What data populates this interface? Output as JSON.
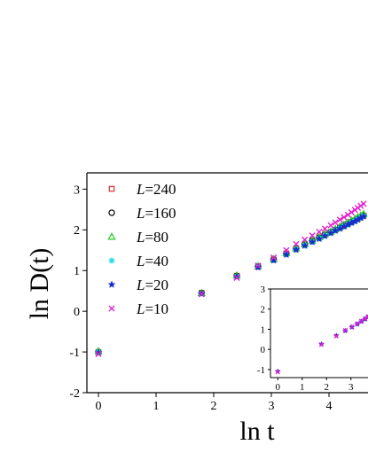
{
  "chart_data": [
    {
      "type": "scatter",
      "title": "",
      "xlabel": "ln t",
      "ylabel": "ln D(t)",
      "xlim": [
        -0.2,
        4.6
      ],
      "ylim": [
        -2,
        3.4
      ],
      "xticks": [
        0,
        1,
        2,
        3,
        4
      ],
      "yticks": [
        -2,
        -1,
        0,
        1,
        2,
        3
      ],
      "grid": false,
      "legend_position": "top-left",
      "series": [
        {
          "name": "L=240",
          "legend_prefix": "L",
          "legend_value": "=240",
          "marker": "square",
          "color": "#e03030",
          "x": [
            0,
            1.79,
            2.4,
            2.77,
            3.04,
            3.26,
            3.43,
            3.58,
            3.71,
            3.83,
            3.93,
            4.03,
            4.11,
            4.19,
            4.26,
            4.33,
            4.39,
            4.45,
            4.5,
            4.55,
            4.6
          ],
          "y": [
            -1.0,
            0.45,
            0.87,
            1.1,
            1.27,
            1.42,
            1.54,
            1.64,
            1.73,
            1.81,
            1.88,
            1.94,
            2.0,
            2.05,
            2.1,
            2.15,
            2.19,
            2.23,
            2.27,
            2.31,
            2.35
          ]
        },
        {
          "name": "L=160",
          "legend_prefix": "L",
          "legend_value": "=160",
          "marker": "circle",
          "color": "#000000",
          "x": [
            0,
            1.79,
            2.4,
            2.77,
            3.04,
            3.26,
            3.43,
            3.58,
            3.71,
            3.83,
            3.93,
            4.03,
            4.11,
            4.19,
            4.26,
            4.33,
            4.39,
            4.45,
            4.5,
            4.55,
            4.6
          ],
          "y": [
            -1.0,
            0.45,
            0.87,
            1.1,
            1.27,
            1.42,
            1.54,
            1.64,
            1.73,
            1.81,
            1.88,
            1.94,
            2.0,
            2.05,
            2.1,
            2.15,
            2.19,
            2.23,
            2.27,
            2.31,
            2.35
          ]
        },
        {
          "name": "L=80",
          "legend_prefix": "L",
          "legend_value": "=80",
          "marker": "triangle",
          "color": "#22cc22",
          "x": [
            0,
            1.79,
            2.4,
            2.77,
            3.04,
            3.26,
            3.43,
            3.58,
            3.71,
            3.83,
            3.93,
            4.03,
            4.11,
            4.19,
            4.26,
            4.33,
            4.39,
            4.45,
            4.5,
            4.55,
            4.6
          ],
          "y": [
            -0.98,
            0.45,
            0.88,
            1.11,
            1.28,
            1.43,
            1.55,
            1.65,
            1.74,
            1.82,
            1.9,
            1.96,
            2.02,
            2.08,
            2.13,
            2.18,
            2.23,
            2.27,
            2.31,
            2.35,
            2.39
          ]
        },
        {
          "name": "L=40",
          "legend_prefix": "L",
          "legend_value": "=40",
          "marker": "asterisk",
          "color": "#22dddd",
          "x": [
            0,
            1.79,
            2.4,
            2.77,
            3.04,
            3.26,
            3.43,
            3.58,
            3.71,
            3.83,
            3.93,
            4.03,
            4.11,
            4.19,
            4.26,
            4.33,
            4.39,
            4.45,
            4.5,
            4.55,
            4.6
          ],
          "y": [
            -1.0,
            0.44,
            0.86,
            1.09,
            1.26,
            1.4,
            1.52,
            1.62,
            1.71,
            1.79,
            1.86,
            1.93,
            1.99,
            2.04,
            2.09,
            2.14,
            2.18,
            2.22,
            2.26,
            2.3,
            2.34
          ]
        },
        {
          "name": "L=20",
          "legend_prefix": "L",
          "legend_value": "=20",
          "marker": "star",
          "color": "#1a2ccc",
          "x": [
            0,
            1.79,
            2.4,
            2.77,
            3.04,
            3.26,
            3.43,
            3.58,
            3.71,
            3.83,
            3.93,
            4.03,
            4.11,
            4.19,
            4.26,
            4.33,
            4.39,
            4.45,
            4.5,
            4.55,
            4.6
          ],
          "y": [
            -1.02,
            0.43,
            0.85,
            1.08,
            1.25,
            1.39,
            1.51,
            1.61,
            1.7,
            1.78,
            1.85,
            1.92,
            1.98,
            2.03,
            2.08,
            2.13,
            2.17,
            2.21,
            2.25,
            2.29,
            2.33
          ]
        },
        {
          "name": "L=10",
          "legend_prefix": "L",
          "legend_value": "=10",
          "marker": "x",
          "color": "#e020d0",
          "x": [
            0,
            1.79,
            2.4,
            2.77,
            3.04,
            3.26,
            3.43,
            3.58,
            3.71,
            3.83,
            3.93,
            4.03,
            4.11,
            4.19,
            4.26,
            4.33,
            4.39,
            4.45,
            4.5,
            4.55,
            4.6
          ],
          "y": [
            -1.05,
            0.42,
            0.82,
            1.12,
            1.32,
            1.5,
            1.65,
            1.76,
            1.86,
            1.95,
            2.03,
            2.11,
            2.18,
            2.25,
            2.31,
            2.37,
            2.43,
            2.49,
            2.54,
            2.59,
            2.64
          ]
        }
      ]
    },
    {
      "type": "scatter",
      "inset": true,
      "title": "",
      "xlabel": "",
      "ylabel": "",
      "xlim": [
        -0.3,
        3.7
      ],
      "ylim": [
        -1.4,
        3
      ],
      "xticks": [
        0,
        1,
        2,
        3
      ],
      "yticks": [
        -1,
        0,
        1,
        2,
        3
      ],
      "grid": false,
      "series": [
        {
          "marker": "star",
          "color": "#1a2ccc",
          "x": [
            0,
            1.79,
            2.4,
            2.77,
            3.04,
            3.26,
            3.43,
            3.58,
            3.7
          ],
          "y": [
            -1.1,
            0.25,
            0.68,
            0.92,
            1.1,
            1.25,
            1.38,
            1.5,
            1.6
          ]
        },
        {
          "marker": "x",
          "color": "#e020d0",
          "x": [
            0,
            1.79,
            2.4,
            2.77,
            3.04,
            3.26,
            3.43,
            3.58,
            3.7
          ],
          "y": [
            -1.12,
            0.24,
            0.66,
            0.95,
            1.12,
            1.28,
            1.41,
            1.53,
            1.63
          ]
        }
      ]
    }
  ]
}
